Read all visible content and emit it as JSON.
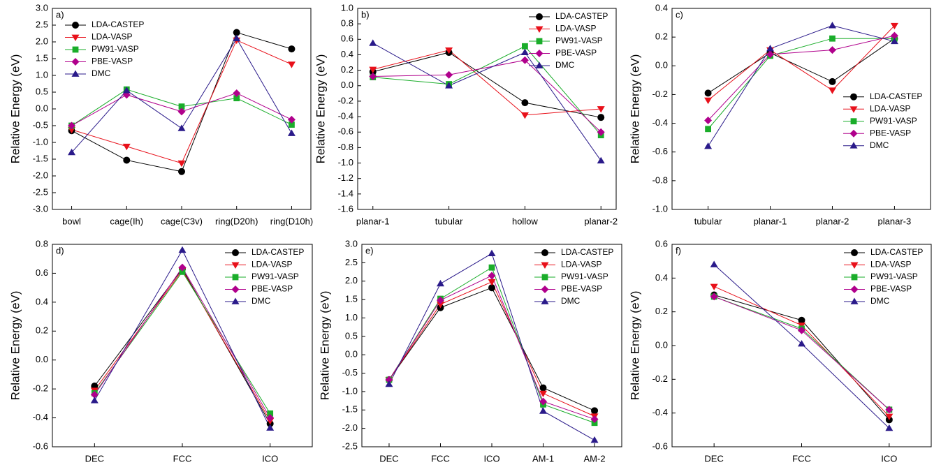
{
  "chart_data": [
    {
      "type": "line",
      "label": "a)",
      "y_label": "Relative Energy (eV)",
      "legend": "upper left",
      "categories": [
        "bowl",
        "cage(Ih)",
        "cage(C3v)",
        "ring(D20h)",
        "ring(D10h)"
      ],
      "ylim": [
        -3,
        3
      ],
      "yticks": [
        {
          "value": -3,
          "label": "-3.0"
        },
        -2.5,
        {
          "value": -2,
          "label": "-2.0"
        },
        -1.5,
        {
          "value": -1,
          "label": "-1.0"
        },
        -0.5,
        {
          "value": 0,
          "label": "0.0"
        },
        0.5,
        {
          "value": 1,
          "label": "1.0"
        },
        1.5,
        {
          "value": 2,
          "label": "2.0"
        },
        2.5,
        {
          "value": 3,
          "label": "3.0"
        }
      ],
      "series": [
        {
          "name": "LDA-CASTEP",
          "color": "#000000",
          "marker": "circle",
          "values": [
            -0.65,
            -1.53,
            -1.87,
            2.28,
            1.79
          ]
        },
        {
          "name": "LDA-VASP",
          "color": "#e8101a",
          "marker": "triangle-down",
          "values": [
            -0.62,
            -1.12,
            -1.62,
            2.05,
            1.33
          ]
        },
        {
          "name": "PW91-VASP",
          "color": "#1aad2a",
          "marker": "square",
          "values": [
            -0.5,
            0.58,
            0.07,
            0.32,
            -0.47
          ]
        },
        {
          "name": "PBE-VASP",
          "color": "#b0008c",
          "marker": "diamond",
          "values": [
            -0.5,
            0.42,
            -0.08,
            0.47,
            -0.32
          ]
        },
        {
          "name": "DMC",
          "color": "#2a1a8a",
          "marker": "triangle-up",
          "values": [
            -1.3,
            0.55,
            -0.58,
            2.1,
            -0.73
          ]
        }
      ]
    },
    {
      "type": "line",
      "label": "b)",
      "y_label": "Relative Energy (eV)",
      "legend": "upper right",
      "categories": [
        "planar-1",
        "tubular",
        "hollow",
        "planar-2"
      ],
      "ylim": [
        -1.6,
        1.0
      ],
      "yticks": [
        -1.6,
        -1.4,
        -1.2,
        {
          "value": -1,
          "label": "-1.0"
        },
        -0.8,
        -0.6,
        -0.4,
        -0.2,
        {
          "value": 0,
          "label": "0.0"
        },
        0.2,
        0.4,
        0.6,
        0.8,
        {
          "value": 1,
          "label": "1.0"
        }
      ],
      "series": [
        {
          "name": "LDA-CASTEP",
          "color": "#000000",
          "marker": "circle",
          "values": [
            0.18,
            0.43,
            -0.22,
            -0.41
          ]
        },
        {
          "name": "LDA-VASP",
          "color": "#e8101a",
          "marker": "triangle-down",
          "values": [
            0.21,
            0.46,
            -0.38,
            -0.3
          ]
        },
        {
          "name": "PW91-VASP",
          "color": "#1aad2a",
          "marker": "square",
          "values": [
            0.11,
            0.02,
            0.51,
            -0.64
          ]
        },
        {
          "name": "PBE-VASP",
          "color": "#b0008c",
          "marker": "diamond",
          "values": [
            0.12,
            0.14,
            0.33,
            -0.6
          ]
        },
        {
          "name": "DMC",
          "color": "#2a1a8a",
          "marker": "triangle-up",
          "values": [
            0.55,
            0.0,
            0.43,
            -0.97
          ]
        }
      ]
    },
    {
      "type": "line",
      "label": "c)",
      "y_label": "Relative Energy (eV)",
      "legend": "center right",
      "categories": [
        "tubular",
        "planar-1",
        "planar-2",
        "planar-3"
      ],
      "ylim": [
        -1.0,
        0.4
      ],
      "yticks": [
        {
          "value": -1,
          "label": "-1.0"
        },
        -0.8,
        -0.6,
        -0.4,
        -0.2,
        {
          "value": 0,
          "label": "0.0"
        },
        0.2,
        0.4
      ],
      "series": [
        {
          "name": "LDA-CASTEP",
          "color": "#000000",
          "marker": "circle",
          "values": [
            -0.19,
            0.09,
            -0.11,
            0.19
          ]
        },
        {
          "name": "LDA-VASP",
          "color": "#e8101a",
          "marker": "triangle-down",
          "values": [
            -0.24,
            0.11,
            -0.17,
            0.28
          ]
        },
        {
          "name": "PW91-VASP",
          "color": "#1aad2a",
          "marker": "square",
          "values": [
            -0.44,
            0.07,
            0.19,
            0.19
          ]
        },
        {
          "name": "PBE-VASP",
          "color": "#b0008c",
          "marker": "diamond",
          "values": [
            -0.38,
            0.08,
            0.11,
            0.21
          ]
        },
        {
          "name": "DMC",
          "color": "#2a1a8a",
          "marker": "triangle-up",
          "values": [
            -0.56,
            0.12,
            0.28,
            0.17
          ]
        }
      ]
    },
    {
      "type": "line",
      "label": "d)",
      "y_label": "Relative Energy (eV)",
      "legend": "upper right",
      "categories": [
        "DEC",
        "FCC",
        "ICO"
      ],
      "ylim": [
        -0.6,
        0.8
      ],
      "yticks": [
        -0.6,
        -0.4,
        -0.2,
        {
          "value": 0,
          "label": "0.0"
        },
        0.2,
        0.4,
        0.6,
        0.8
      ],
      "series": [
        {
          "name": "LDA-CASTEP",
          "color": "#000000",
          "marker": "circle",
          "values": [
            -0.18,
            0.63,
            -0.44
          ]
        },
        {
          "name": "LDA-VASP",
          "color": "#e8101a",
          "marker": "triangle-down",
          "values": [
            -0.21,
            0.62,
            -0.42
          ]
        },
        {
          "name": "PW91-VASP",
          "color": "#1aad2a",
          "marker": "square",
          "values": [
            -0.23,
            0.61,
            -0.37
          ]
        },
        {
          "name": "PBE-VASP",
          "color": "#b0008c",
          "marker": "diamond",
          "values": [
            -0.24,
            0.64,
            -0.4
          ]
        },
        {
          "name": "DMC",
          "color": "#2a1a8a",
          "marker": "triangle-up",
          "values": [
            -0.28,
            0.76,
            -0.47
          ]
        }
      ]
    },
    {
      "type": "line",
      "label": "e)",
      "y_label": "Relative Energy (eV)",
      "legend": "upper right",
      "categories": [
        "DEC",
        "FCC",
        "ICO",
        "AM-1",
        "AM-2"
      ],
      "ylim": [
        -2.5,
        3.0
      ],
      "yticks": [
        -2.5,
        {
          "value": -2,
          "label": "-2.0"
        },
        -1.5,
        {
          "value": -1,
          "label": "-1.0"
        },
        -0.5,
        {
          "value": 0,
          "label": "0.0"
        },
        0.5,
        {
          "value": 1,
          "label": "1.0"
        },
        1.5,
        {
          "value": 2,
          "label": "2.0"
        },
        2.5,
        {
          "value": 3,
          "label": "3.0"
        }
      ],
      "series": [
        {
          "name": "LDA-CASTEP",
          "color": "#000000",
          "marker": "circle",
          "values": [
            -0.68,
            1.28,
            1.82,
            -0.9,
            -1.52
          ]
        },
        {
          "name": "LDA-VASP",
          "color": "#e8101a",
          "marker": "triangle-down",
          "values": [
            -0.68,
            1.37,
            1.98,
            -1.05,
            -1.67
          ]
        },
        {
          "name": "PW91-VASP",
          "color": "#1aad2a",
          "marker": "square",
          "values": [
            -0.68,
            1.52,
            2.37,
            -1.35,
            -1.85
          ]
        },
        {
          "name": "PBE-VASP",
          "color": "#b0008c",
          "marker": "diamond",
          "values": [
            -0.68,
            1.48,
            2.15,
            -1.27,
            -1.75
          ]
        },
        {
          "name": "DMC",
          "color": "#2a1a8a",
          "marker": "triangle-up",
          "values": [
            -0.8,
            1.93,
            2.75,
            -1.53,
            -2.32
          ]
        }
      ]
    },
    {
      "type": "line",
      "label": "f)",
      "y_label": "Relative Energy (eV)",
      "legend": "upper right",
      "categories": [
        "DEC",
        "FCC",
        "ICO"
      ],
      "ylim": [
        -0.6,
        0.6
      ],
      "yticks": [
        -0.6,
        -0.4,
        -0.2,
        {
          "value": 0,
          "label": "0.0"
        },
        0.2,
        0.4,
        0.6
      ],
      "series": [
        {
          "name": "LDA-CASTEP",
          "color": "#000000",
          "marker": "circle",
          "values": [
            0.3,
            0.15,
            -0.44
          ]
        },
        {
          "name": "LDA-VASP",
          "color": "#e8101a",
          "marker": "triangle-down",
          "values": [
            0.35,
            0.12,
            -0.42
          ]
        },
        {
          "name": "PW91-VASP",
          "color": "#1aad2a",
          "marker": "square",
          "values": [
            0.29,
            0.1,
            -0.38
          ]
        },
        {
          "name": "PBE-VASP",
          "color": "#b0008c",
          "marker": "diamond",
          "values": [
            0.29,
            0.09,
            -0.38
          ]
        },
        {
          "name": "DMC",
          "color": "#2a1a8a",
          "marker": "triangle-up",
          "values": [
            0.48,
            0.01,
            -0.49
          ]
        }
      ]
    }
  ]
}
